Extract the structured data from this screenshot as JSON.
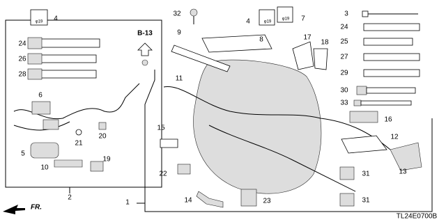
{
  "section": "B-13",
  "direction": "FR.",
  "reference_code": "TL24E0700B",
  "callouts": [
    "4",
    "φ19",
    "24",
    "26",
    "28",
    "6",
    "21",
    "20",
    "5",
    "10",
    "19",
    "2",
    "32",
    "9",
    "8",
    "4",
    "φ19",
    "7",
    "φ19",
    "11",
    "15",
    "22",
    "14",
    "23",
    "1",
    "17",
    "18",
    "16",
    "12",
    "13",
    "31",
    "31",
    "3",
    "24",
    "25",
    "27",
    "29",
    "30",
    "33"
  ]
}
